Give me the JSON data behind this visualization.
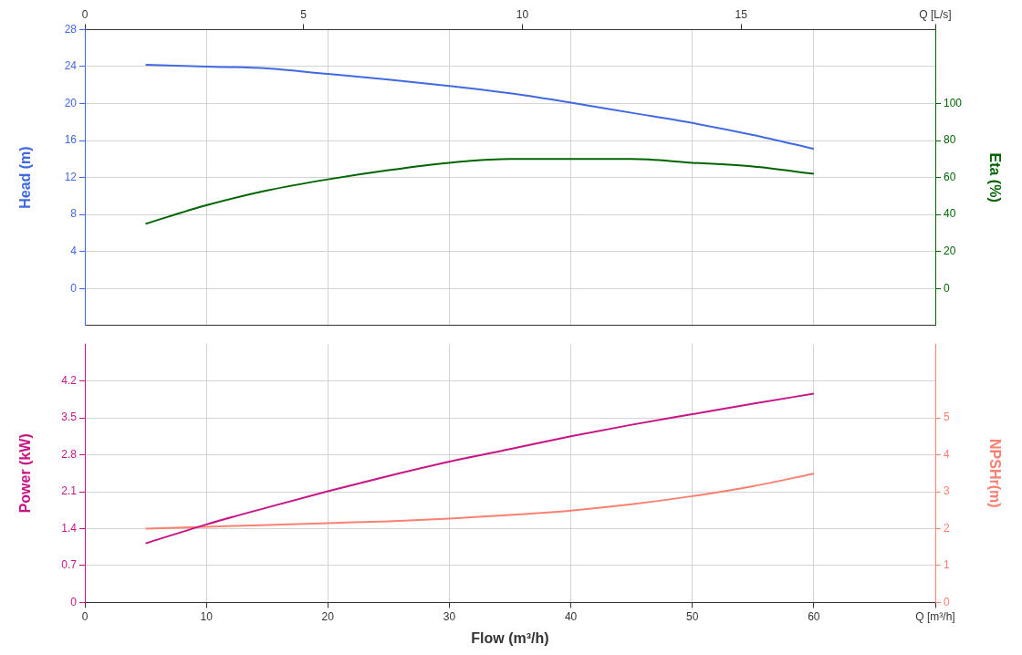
{
  "chart_data": [
    {
      "type": "line",
      "x": [
        5,
        10,
        15,
        20,
        25,
        30,
        35,
        40,
        45,
        50,
        55,
        60
      ],
      "xlim": [
        0,
        70
      ],
      "xticks": [
        0,
        10,
        20,
        30,
        40,
        50,
        60
      ],
      "x2lim": [
        0,
        19.44
      ],
      "x2ticks": [
        0,
        5,
        10,
        15,
        {
          "value": 19.44,
          "label": "Q [L/s]"
        }
      ],
      "ylabel": "Head (m)",
      "ylim": [
        -4,
        28
      ],
      "yticks": [
        0,
        4,
        8,
        12,
        16,
        20,
        24,
        28
      ],
      "y2label": "Eta (%)",
      "y2lim": [
        -20,
        140
      ],
      "y2ticks": [
        0,
        20,
        40,
        60,
        80,
        100
      ],
      "grid": true,
      "tick_labels": "y",
      "series": [
        {
          "color": "#4169e1",
          "values": [
            24.2,
            24.0,
            23.8,
            23.2,
            22.6,
            21.9,
            21.1,
            20.1,
            19.0,
            17.9,
            16.6,
            15.1
          ]
        },
        {
          "color": "#006400",
          "axis": "y2",
          "values": [
            35,
            45,
            53,
            59,
            64,
            68,
            70,
            70,
            70,
            68,
            66,
            62
          ]
        }
      ]
    },
    {
      "type": "line",
      "x": [
        5,
        10,
        15,
        20,
        25,
        30,
        35,
        40,
        45,
        50,
        55,
        60
      ],
      "xlim": [
        0,
        70
      ],
      "xticks": [
        0,
        10,
        20,
        30,
        40,
        50,
        60,
        {
          "value": 70,
          "label": "Q [m³/h]"
        }
      ],
      "xlabel": "Flow (m³/h)",
      "ylabel": "Power (kW)",
      "ylim": [
        0,
        4.9
      ],
      "yticks": [
        0,
        0.7,
        1.4,
        2.1,
        2.8,
        3.5,
        4.2
      ],
      "y2label": "NPSHr(m)",
      "y2lim": [
        0,
        7
      ],
      "y2ticks": [
        0,
        1,
        2,
        3,
        4,
        5
      ],
      "grid": true,
      "series": [
        {
          "color": "#c71585",
          "values": [
            1.12,
            1.48,
            1.8,
            2.11,
            2.4,
            2.67,
            2.91,
            3.15,
            3.37,
            3.57,
            3.77,
            3.96
          ]
        },
        {
          "color": "#fa8072",
          "axis": "y2",
          "values": [
            2.0,
            2.05,
            2.1,
            2.15,
            2.2,
            2.27,
            2.37,
            2.49,
            2.66,
            2.88,
            3.15,
            3.49
          ]
        }
      ]
    }
  ]
}
